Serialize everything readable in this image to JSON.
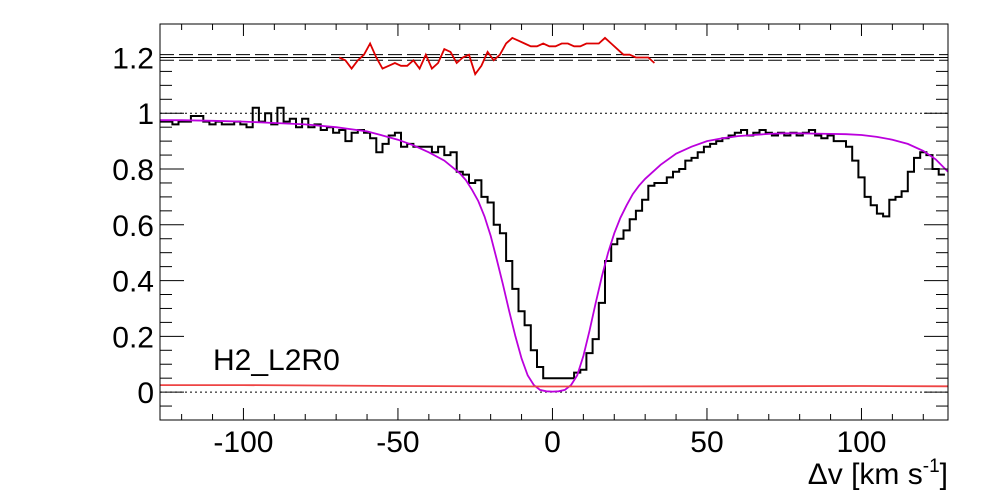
{
  "chart_data": {
    "type": "line",
    "title": "",
    "annotation": "H2_L2R0",
    "xlabel_prefix": "Δv [km s",
    "xlabel_exp": "-1",
    "xlabel_suffix": "]",
    "ylabel": "",
    "xlim": [
      -127,
      128
    ],
    "ylim": [
      -0.1,
      1.32
    ],
    "xticks": [
      -100,
      -50,
      0,
      50,
      100
    ],
    "xtick_labels": [
      "-100",
      "-50",
      "0",
      "50",
      "100"
    ],
    "yticks": [
      0,
      0.2,
      0.4,
      0.6,
      0.8,
      1,
      1.2
    ],
    "ytick_labels": [
      "0",
      "0.2",
      "0.4",
      "0.6",
      "0.8",
      "1",
      "1.2"
    ],
    "reference_lines": [
      {
        "name": "zero-level",
        "y": 0,
        "style": "dotted"
      },
      {
        "name": "continuum-level",
        "y": 1,
        "style": "dotted"
      },
      {
        "name": "residual-center",
        "y": 1.2,
        "style": "solid"
      },
      {
        "name": "residual-upper-bound",
        "y": 1.21,
        "style": "dashed"
      },
      {
        "name": "residual-lower-bound",
        "y": 1.19,
        "style": "dashed"
      }
    ],
    "series": [
      {
        "name": "spectrum",
        "kind": "step",
        "color": "#000000",
        "x": [
          -127,
          -125,
          -123,
          -121,
          -119,
          -117,
          -115,
          -113,
          -111,
          -109,
          -107,
          -105,
          -103,
          -101,
          -99,
          -97,
          -95,
          -93,
          -91,
          -89,
          -87,
          -85,
          -83,
          -81,
          -79,
          -77,
          -75,
          -73,
          -71,
          -69,
          -67,
          -65,
          -63,
          -61,
          -59,
          -57,
          -55,
          -53,
          -51,
          -49,
          -47,
          -45,
          -43,
          -41,
          -39,
          -37,
          -35,
          -33,
          -31,
          -29,
          -27,
          -25,
          -23,
          -21,
          -19,
          -17,
          -15,
          -13,
          -11,
          -9,
          -7,
          -5,
          -3,
          -1,
          1,
          3,
          5,
          7,
          9,
          11,
          13,
          15,
          17,
          19,
          21,
          23,
          25,
          27,
          29,
          31,
          33,
          35,
          37,
          39,
          41,
          43,
          45,
          47,
          49,
          51,
          53,
          55,
          57,
          59,
          61,
          63,
          65,
          67,
          69,
          71,
          73,
          75,
          77,
          79,
          81,
          83,
          85,
          87,
          89,
          91,
          93,
          95,
          97,
          99,
          101,
          103,
          105,
          107,
          109,
          111,
          113,
          115,
          117,
          119,
          121,
          123,
          125,
          127
        ],
        "y": [
          0.97,
          0.97,
          0.96,
          0.97,
          0.97,
          0.99,
          0.99,
          0.97,
          0.96,
          0.97,
          0.96,
          0.96,
          0.97,
          0.96,
          0.95,
          1.02,
          0.97,
          1.0,
          0.96,
          1.02,
          0.97,
          0.98,
          0.95,
          0.98,
          0.95,
          0.96,
          0.94,
          0.95,
          0.93,
          0.94,
          0.9,
          0.93,
          0.94,
          0.93,
          0.91,
          0.86,
          0.89,
          0.92,
          0.93,
          0.88,
          0.89,
          0.88,
          0.88,
          0.88,
          0.86,
          0.88,
          0.85,
          0.86,
          0.79,
          0.78,
          0.75,
          0.76,
          0.7,
          0.68,
          0.6,
          0.57,
          0.47,
          0.37,
          0.29,
          0.24,
          0.15,
          0.09,
          0.05,
          0.05,
          0.05,
          0.05,
          0.05,
          0.07,
          0.08,
          0.14,
          0.19,
          0.32,
          0.47,
          0.53,
          0.55,
          0.58,
          0.62,
          0.65,
          0.69,
          0.74,
          0.75,
          0.75,
          0.77,
          0.79,
          0.8,
          0.83,
          0.84,
          0.86,
          0.88,
          0.89,
          0.9,
          0.91,
          0.92,
          0.93,
          0.94,
          0.92,
          0.93,
          0.94,
          0.93,
          0.92,
          0.93,
          0.92,
          0.93,
          0.92,
          0.93,
          0.94,
          0.92,
          0.91,
          0.92,
          0.9,
          0.9,
          0.88,
          0.83,
          0.77,
          0.7,
          0.67,
          0.64,
          0.63,
          0.69,
          0.7,
          0.72,
          0.79,
          0.84,
          0.86,
          0.85,
          0.8,
          0.78,
          0.8
        ]
      },
      {
        "name": "model-fit",
        "kind": "line",
        "color": "#bb00dd",
        "x": [
          -127,
          -120,
          -110,
          -100,
          -90,
          -80,
          -70,
          -60,
          -55,
          -50,
          -45,
          -40,
          -35,
          -30,
          -28,
          -26,
          -24,
          -22,
          -20,
          -18,
          -16,
          -14,
          -12,
          -10,
          -8,
          -6,
          -4,
          -2,
          0,
          2,
          4,
          6,
          8,
          10,
          12,
          14,
          16,
          18,
          20,
          22,
          24,
          26,
          28,
          30,
          35,
          40,
          45,
          50,
          55,
          60,
          65,
          70,
          75,
          80,
          85,
          90,
          95,
          100,
          105,
          110,
          115,
          120,
          124,
          128
        ],
        "y": [
          0.975,
          0.975,
          0.973,
          0.97,
          0.965,
          0.96,
          0.95,
          0.935,
          0.92,
          0.905,
          0.885,
          0.86,
          0.83,
          0.785,
          0.76,
          0.725,
          0.685,
          0.63,
          0.56,
          0.475,
          0.385,
          0.29,
          0.2,
          0.12,
          0.06,
          0.025,
          0.008,
          0.003,
          0.002,
          0.003,
          0.008,
          0.025,
          0.06,
          0.13,
          0.22,
          0.32,
          0.415,
          0.5,
          0.57,
          0.625,
          0.67,
          0.71,
          0.74,
          0.765,
          0.815,
          0.855,
          0.88,
          0.9,
          0.91,
          0.918,
          0.922,
          0.926,
          0.928,
          0.928,
          0.927,
          0.926,
          0.925,
          0.922,
          0.915,
          0.905,
          0.89,
          0.865,
          0.835,
          0.79
        ]
      },
      {
        "name": "residuals",
        "kind": "line",
        "color": "#dd0000",
        "x": [
          -69,
          -67,
          -65,
          -63,
          -61,
          -59,
          -57,
          -55,
          -53,
          -51,
          -49,
          -47,
          -45,
          -43,
          -41,
          -39,
          -37,
          -35,
          -33,
          -31,
          -29,
          -27,
          -25,
          -23,
          -21,
          -19,
          -17,
          -15,
          -13,
          -11,
          -9,
          -7,
          -5,
          -3,
          -1,
          1,
          3,
          5,
          7,
          9,
          11,
          13,
          15,
          17,
          19,
          21,
          23,
          25,
          27,
          29,
          31,
          33
        ],
        "y": [
          1.2,
          1.19,
          1.16,
          1.19,
          1.21,
          1.25,
          1.2,
          1.16,
          1.17,
          1.18,
          1.17,
          1.17,
          1.19,
          1.16,
          1.21,
          1.16,
          1.18,
          1.23,
          1.22,
          1.18,
          1.2,
          1.21,
          1.14,
          1.17,
          1.22,
          1.19,
          1.21,
          1.25,
          1.27,
          1.26,
          1.25,
          1.24,
          1.24,
          1.25,
          1.24,
          1.24,
          1.25,
          1.25,
          1.24,
          1.24,
          1.25,
          1.25,
          1.25,
          1.27,
          1.25,
          1.23,
          1.21,
          1.21,
          1.2,
          1.2,
          1.2,
          1.18
        ]
      },
      {
        "name": "error-level",
        "kind": "line",
        "color": "#ee4444",
        "x": [
          -127,
          -100,
          -50,
          0,
          50,
          100,
          128
        ],
        "y": [
          0.025,
          0.025,
          0.022,
          0.02,
          0.021,
          0.022,
          0.021
        ]
      }
    ]
  }
}
